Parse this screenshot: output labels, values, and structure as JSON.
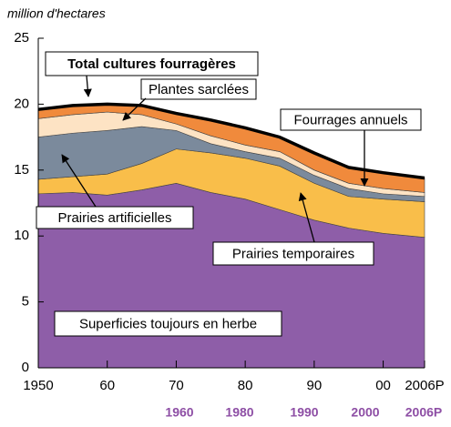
{
  "chart_data": {
    "type": "stacked_area",
    "y_axis_label": "million d'hectares",
    "x": [
      1950,
      1955,
      1960,
      1965,
      1970,
      1975,
      1980,
      1985,
      1990,
      1995,
      2000,
      2006
    ],
    "series": [
      {
        "name": "Superficies toujours en herbe",
        "color": "#8e5ea8",
        "values": [
          13.2,
          13.3,
          13.1,
          13.5,
          14.0,
          13.3,
          12.8,
          12.0,
          11.2,
          10.6,
          10.2,
          9.9
        ]
      },
      {
        "name": "Prairies temporaires",
        "color": "#f9be4a",
        "values": [
          1.1,
          1.2,
          1.6,
          2.0,
          2.6,
          3.0,
          3.1,
          3.3,
          2.8,
          2.4,
          2.6,
          2.7
        ]
      },
      {
        "name": "Prairies artificielles",
        "color": "#7b8a9c",
        "values": [
          3.2,
          3.3,
          3.3,
          2.8,
          1.4,
          0.7,
          0.5,
          0.6,
          0.6,
          0.6,
          0.4,
          0.4
        ]
      },
      {
        "name": "Plantes sarclées",
        "color": "#fde3c4",
        "values": [
          1.4,
          1.4,
          1.4,
          0.9,
          0.5,
          0.6,
          0.5,
          0.5,
          0.4,
          0.4,
          0.4,
          0.3
        ]
      },
      {
        "name": "Fourrages annuels",
        "color": "#f08a3c",
        "values": [
          0.7,
          0.7,
          0.6,
          0.7,
          0.8,
          1.2,
          1.3,
          1.1,
          1.3,
          1.2,
          1.2,
          1.1
        ]
      }
    ],
    "total_label": "Total cultures fourragères",
    "xlim": [
      1950,
      2006
    ],
    "xticks": [
      1950,
      {
        "value": 1960,
        "label": "60"
      },
      {
        "value": 1970,
        "label": "70"
      },
      {
        "value": 1980,
        "label": "80"
      },
      {
        "value": 1990,
        "label": "90"
      },
      {
        "value": 2000,
        "label": "00"
      },
      {
        "value": 2006,
        "label": "2006P"
      }
    ],
    "ylim": [
      0,
      25
    ],
    "yticks": [
      0,
      5,
      10,
      15,
      20,
      25
    ],
    "bottom_labels": [
      "1960",
      "1980",
      "1990",
      "2000",
      "2006P"
    ]
  }
}
